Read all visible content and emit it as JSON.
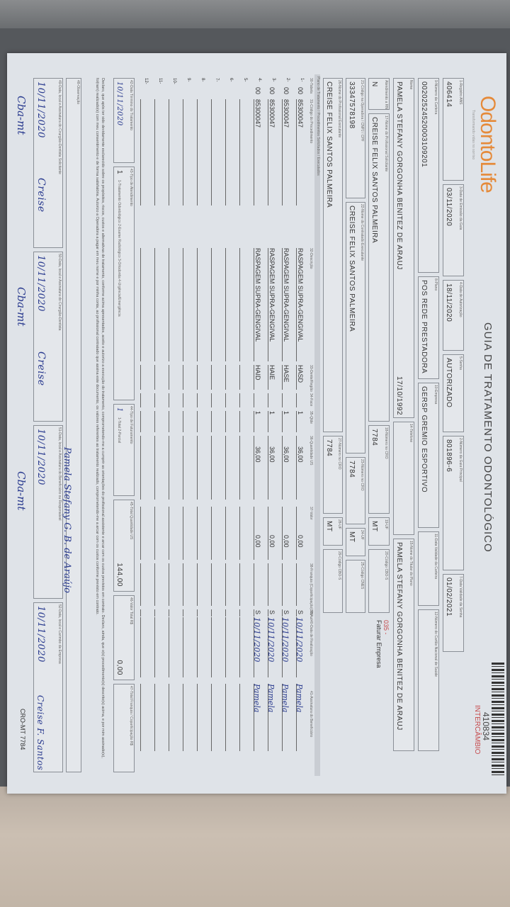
{
  "logo": {
    "brand": "OdontoLife",
    "tagline": "Transformando vidas no sorriso"
  },
  "title": "GUIA DE TRATAMENTO ODONTOLÓGICO",
  "guide_number": "410834",
  "guide_type": "INTERCÂMBIO",
  "row1": {
    "ans_label": "1-Registro ANS",
    "ans": "406414",
    "emissao_label": "3-Data de Emissão da Guia",
    "emissao": "03/11/2020",
    "autorizacao_label": "4-Data de Autorização",
    "autorizacao": "18/11/2020",
    "senha_label": "5-Senha",
    "senha": "AUTORIZADO",
    "guia_principal_label": "2-Número da Guia Principal",
    "guia_principal": "801896-6",
    "validade_senha_label": "7-Data Validade da Senha",
    "validade_senha": "01/02/2021"
  },
  "row2": {
    "carteira_label": "9-Número da Carteira",
    "carteira": "00202524520003109201",
    "plano_label": "8-Plano",
    "plano": "POS REDE PRESTADORA",
    "empresa_label": "10-Empresa",
    "empresa": "GERSP GREMIO ESPORTIVO",
    "validade_carteira_label": "11-Data Validade da Carteira",
    "cns_label": "12-Número do Cartão Nacional de Saúde"
  },
  "row3": {
    "nome_label": "Nome",
    "nome": "PAMELA STEFANY GORGONHA BENITEZ DE ARAUJ",
    "nascimento": "17/10/1992",
    "telefone_label": "14-Telefone",
    "titular_label": "15-Nome do Titular do Plano",
    "titular": "PAMELA STEFANY GORGONHA BENITEZ DE ARAUJ"
  },
  "row4": {
    "rn_label": "Atendimento a RN",
    "rn": "N",
    "solicitante_label": "17-Nome do Profissional Solicitante",
    "solicitante": "CREISE FELIX SANTOS PALMEIRA",
    "cro_label": "18-Número no CRO",
    "cro": "7784",
    "uf_label": "19-UF",
    "uf": "MT",
    "cbo_label": "20-Código CBO-S",
    "faturamento_code": "035 -",
    "faturamento": "Faturar Empresa"
  },
  "row5": {
    "codigo_label": "21-Código na Operadora / CNPJ / CPF",
    "codigo": "33347578198",
    "contratado_label": "22-Nome do Contratado Executante",
    "contratado": "CREISE FELIX SANTOS PALMEIRA",
    "cro_label": "23-Número no CRO",
    "cro": "7784",
    "uf_label": "24-UF",
    "uf": "MT",
    "cnes_label": "25-Código CNES"
  },
  "row6": {
    "executante_label": "26-Nome do Profissional Executante",
    "executante": "CREISE FELIX SANTOS PALMEIRA",
    "cro_label": "27-Número no CRO",
    "cro": "7784",
    "uf_label": "28-UF",
    "uf": "MT",
    "cbo_label": "29-Código CBO-S"
  },
  "band_plano": "Plano de Tratamento / Procedimentos Solicitados / Executados",
  "table": {
    "headers": [
      "30-Tabela",
      "31-Código do Procedimento",
      "32-Descrição",
      "33-Dente/Região",
      "34-Face",
      "35-Qtde",
      "36-Quantidade US",
      "37-Valor",
      "38-Franquia (Coparticipação) R$",
      "39-Aut",
      "40-Data de Realização",
      "41-Assinatura do Beneficiário"
    ],
    "rows": [
      {
        "n": "1-",
        "tabela": "00",
        "codigo": "85300047",
        "descricao": "RASPAGEM SUPRA-GENGIVAL",
        "dente": "HASD",
        "qtde": "1",
        "us": "36,00",
        "valor": "0,00",
        "aut": "S",
        "data": "10/11/2020",
        "assinatura": "Pamela"
      },
      {
        "n": "2-",
        "tabela": "00",
        "codigo": "85300047",
        "descricao": "RASPAGEM SUPRA-GENGIVAL",
        "dente": "HASE",
        "qtde": "1",
        "us": "36,00",
        "valor": "0,00",
        "aut": "S",
        "data": "10/11/2020",
        "assinatura": "Pamela"
      },
      {
        "n": "3-",
        "tabela": "00",
        "codigo": "85300047",
        "descricao": "RASPAGEM SUPRA-GENGIVAL",
        "dente": "HAIE",
        "qtde": "1",
        "us": "36,00",
        "valor": "0,00",
        "aut": "S",
        "data": "10/11/2020",
        "assinatura": "Pamela"
      },
      {
        "n": "4-",
        "tabela": "00",
        "codigo": "85300047",
        "descricao": "RASPAGEM SUPRA-GENGIVAL",
        "dente": "HAID",
        "qtde": "1",
        "us": "36,00",
        "valor": "0,00",
        "aut": "S",
        "data": "10/11/2020",
        "assinatura": "Pamela"
      },
      {
        "n": "5-"
      },
      {
        "n": "6-"
      },
      {
        "n": "7-"
      },
      {
        "n": "8-"
      },
      {
        "n": "9-"
      },
      {
        "n": "10-"
      },
      {
        "n": "11-"
      },
      {
        "n": "12-"
      }
    ]
  },
  "footer": {
    "termino_label": "42-Data Término do Tratamento",
    "termino": "10/11/2020",
    "tipo_atend_label": "43-Tipo de Atendimento",
    "tipo_atend": "1",
    "tipo_atend_opts": "1-Tratamento Odontológico 2-Exame Radiológico 3-Ortodontia 4-Urgência/Emergência",
    "tipo_fat_label": "44-Tipo de Faturamento",
    "tipo_fat": "1",
    "tipo_fat_opts": "1-Total 2-Parcial",
    "total_us_label": "45-Total Quantidade US",
    "total_us": "144,00",
    "valor_total_label": "46-Valor Total R$",
    "valor_total": "0,00",
    "franquia_label": "47-Total Franquia / Coparticipação R$"
  },
  "declaration": "Declaro, que após ter sido devidamente esclarecido sobre os propósitos, riscos, custos e alternativas de tratamento, conforme acima apresentados, aceito e autorizo a execução do tratamento, comprometendo-me a cumprir as orientações do profissional assistente e arcar com os custos previstos em contrato. Declaro, ainda, que o(s) procedimento(s) descrito(s) acima, e por mim assinado(s), foi(ram) realizado(s) com meu consentimento e de forma satisfatória. Autorizo a Operadora a pagar em meu nome e por minha conta, ao profissional contratado que assina este documento, os valores referentes ao tratamento realizado, comprometendo-me a arcar com os custos conforme previsto em contrato.",
  "observacao_label": "48-Observação",
  "signatures": [
    {
      "label": "49-Data, local e Assinatura do Cirurgião-Dentista Solicitante",
      "date": "10/11/2020",
      "sign": "Creise"
    },
    {
      "label": "50-Data, local e Assinatura do Cirurgião-Dentista",
      "date": "10/11/2020",
      "sign": "Creise"
    },
    {
      "label": "51-Data, local e Assinatura do Beneficiário ou Responsável",
      "date": "10/11/2020",
      "sign": "Pamela Stefany G. B. de Araújo"
    },
    {
      "label": "52-Data, local e Carimbo da Empresa",
      "date": "10/11/2020",
      "sign": "Creise F. Santos"
    }
  ],
  "handwritten_notes": [
    "Cba-mt",
    "Cba-mt",
    "Cba-mt"
  ],
  "stamp": "CRO-MT 7784"
}
